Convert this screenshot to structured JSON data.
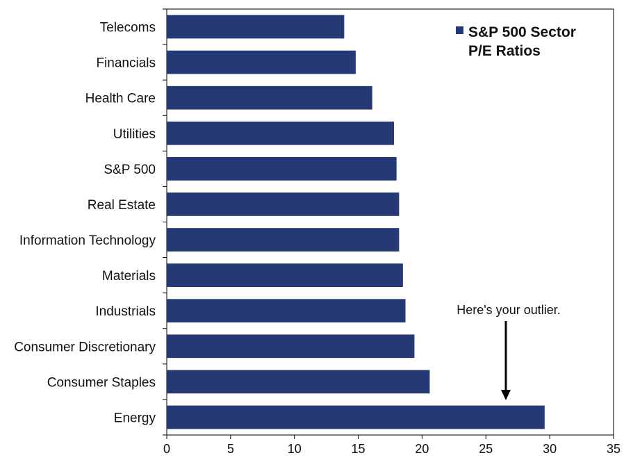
{
  "chart_data": {
    "type": "bar",
    "orientation": "horizontal",
    "categories": [
      "Telecoms",
      "Financials",
      "Health Care",
      "Utilities",
      "S&P 500",
      "Real Estate",
      "Information Technology",
      "Materials",
      "Industrials",
      "Consumer Discretionary",
      "Consumer Staples",
      "Energy"
    ],
    "series": [
      {
        "name": "S&P 500 Sector P/E Ratios",
        "values": [
          13.9,
          14.8,
          16.1,
          17.8,
          18.0,
          18.2,
          18.2,
          18.5,
          18.7,
          19.4,
          20.6,
          29.6
        ]
      }
    ],
    "legend": {
      "lines": [
        "S&P 500 Sector",
        "P/E Ratios"
      ],
      "position": "top-right"
    },
    "annotation": {
      "text": "Here's your outlier.",
      "points_to": "Energy",
      "at_value": 26.5
    },
    "xlim": [
      0,
      35
    ],
    "xticks": [
      0,
      5,
      10,
      15,
      20,
      25,
      30,
      35
    ],
    "grid": false,
    "colors": {
      "bar": "#253A75",
      "axis": "#000000"
    }
  }
}
